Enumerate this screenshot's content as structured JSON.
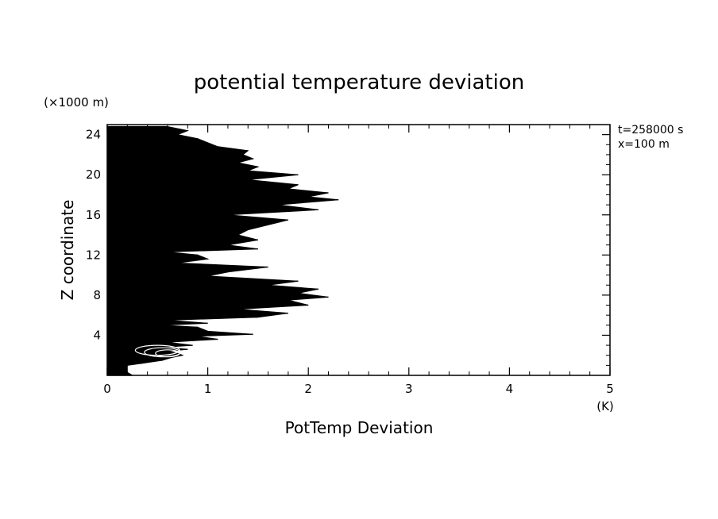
{
  "chart_data": {
    "type": "line",
    "title": "potential temperature deviation",
    "xlabel": "PotTemp Deviation",
    "xunit": "(K)",
    "ylabel": "Z coordinate",
    "yunit": "(×1000 m)",
    "annotations": [
      "t=258000 s",
      "x=100 m"
    ],
    "xlim": [
      0,
      5
    ],
    "ylim": [
      0,
      25
    ],
    "x_ticks": [
      0,
      1,
      2,
      3,
      4,
      5
    ],
    "y_ticks": [
      4,
      8,
      12,
      16,
      20,
      24
    ],
    "grid": false,
    "profile_envelope": {
      "z": [
        0.0,
        0.3,
        0.6,
        1.0,
        1.2,
        1.5,
        1.8,
        2.0,
        2.2,
        2.4,
        2.6,
        2.8,
        3.0,
        3.3,
        3.6,
        3.9,
        4.1,
        4.4,
        4.8,
        5.0,
        5.2,
        5.5,
        5.8,
        6.2,
        6.6,
        7.0,
        7.5,
        7.8,
        8.2,
        8.6,
        9.0,
        9.4,
        9.9,
        10.3,
        10.8,
        11.2,
        11.6,
        12.0,
        12.3,
        12.6,
        13.0,
        13.5,
        14.0,
        14.5,
        15.0,
        15.5,
        16.0,
        16.5,
        17.0,
        17.5,
        17.8,
        18.2,
        18.6,
        19.0,
        19.5,
        20.0,
        20.4,
        20.8,
        21.2,
        21.6,
        22.0,
        22.4,
        22.8,
        23.2,
        23.6,
        24.0,
        24.4,
        24.8
      ],
      "x": [
        0.25,
        0.2,
        0.2,
        0.2,
        0.35,
        0.55,
        0.65,
        0.75,
        0.7,
        0.6,
        0.8,
        0.55,
        0.85,
        0.6,
        1.1,
        0.9,
        1.45,
        1.0,
        0.9,
        0.55,
        1.0,
        0.6,
        1.5,
        1.8,
        1.3,
        2.0,
        1.8,
        2.2,
        1.9,
        2.1,
        1.6,
        1.9,
        1.0,
        1.2,
        1.6,
        0.7,
        1.0,
        0.9,
        0.6,
        1.5,
        1.2,
        1.5,
        1.3,
        1.4,
        1.6,
        1.8,
        1.2,
        2.1,
        1.7,
        2.3,
        2.0,
        2.2,
        1.8,
        1.9,
        1.4,
        1.9,
        1.4,
        1.5,
        1.3,
        1.45,
        1.35,
        1.4,
        1.1,
        1.0,
        0.9,
        0.7,
        0.8,
        0.6
      ]
    },
    "scale_note": "dense overplotted black profile lines filling the region between x=0 and the envelope; values in K vs Z in km"
  }
}
